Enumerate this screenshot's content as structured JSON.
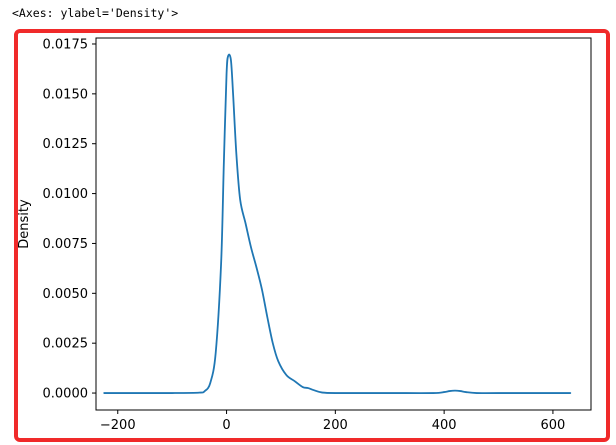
{
  "output": {
    "repr_text": "<Axes: ylabel='Density'>"
  },
  "colors": {
    "line": "#1f77b4",
    "frame": "#f02a2a",
    "axes": "#000000"
  },
  "chart_data": {
    "type": "line",
    "title": "",
    "xlabel": "",
    "ylabel": "Density",
    "xlim": [
      -240,
      670
    ],
    "ylim": [
      -0.00085,
      0.0178
    ],
    "grid": false,
    "x_ticks": [
      -200,
      0,
      200,
      400,
      600
    ],
    "x_tick_labels": [
      "−200",
      "0",
      "200",
      "400",
      "600"
    ],
    "y_ticks": [
      0.0,
      0.0025,
      0.005,
      0.0075,
      0.01,
      0.0125,
      0.015,
      0.0175
    ],
    "y_tick_labels": [
      "0.0000",
      "0.0025",
      "0.0050",
      "0.0075",
      "0.0100",
      "0.0125",
      "0.0150",
      "0.0175"
    ],
    "series": [
      {
        "x": [
          -225,
          -100,
          -50,
          -40,
          -30,
          -20,
          -10,
          -5,
          0,
          3,
          8,
          12,
          18,
          25,
          35,
          45,
          55,
          65,
          75,
          85,
          95,
          110,
          125,
          140,
          150,
          160,
          175,
          200,
          300,
          380,
          400,
          410,
          420,
          430,
          440,
          460,
          500,
          632
        ],
        "values": [
          0.0,
          0.0,
          2e-05,
          0.0001,
          0.0005,
          0.002,
          0.0065,
          0.0115,
          0.016,
          0.0169,
          0.0167,
          0.015,
          0.012,
          0.0097,
          0.0085,
          0.0073,
          0.0063,
          0.0052,
          0.0038,
          0.0025,
          0.0016,
          0.0009,
          0.0006,
          0.0003,
          0.00025,
          0.00015,
          3e-05,
          0.0,
          0.0,
          0.0,
          5e-05,
          0.0001,
          0.00012,
          0.0001,
          5e-05,
          0.0,
          0.0,
          0.0
        ]
      }
    ]
  }
}
